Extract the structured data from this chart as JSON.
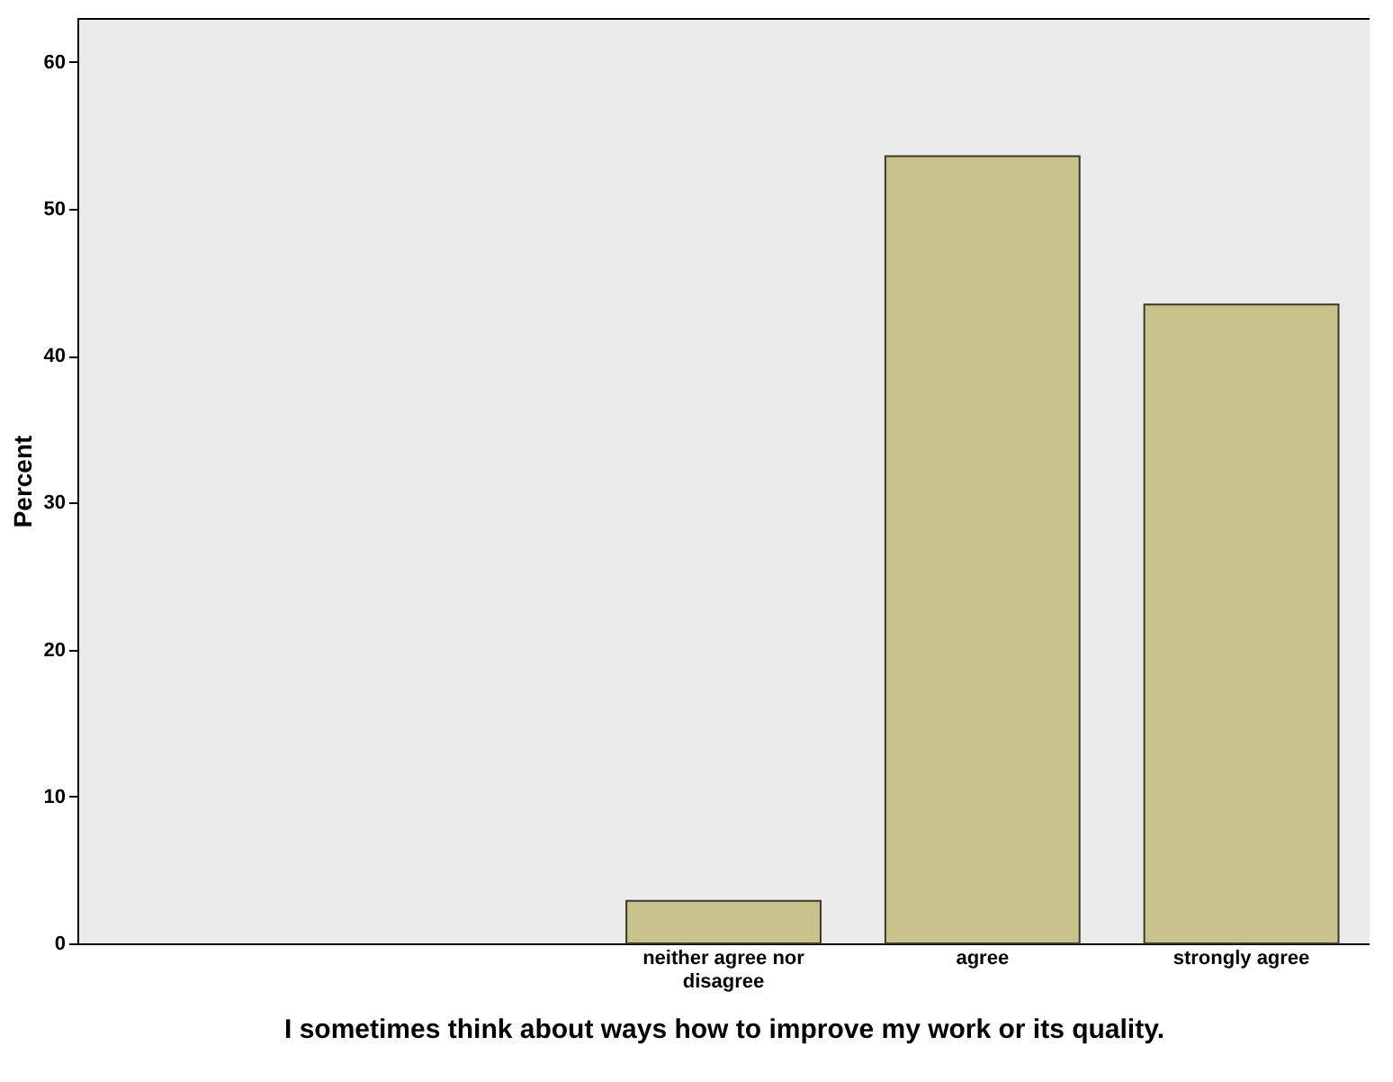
{
  "chart_data": {
    "type": "bar",
    "xlabel": "I sometimes think about ways how to improve my work or its quality.",
    "ylabel": "Percent",
    "categories": [
      null,
      null,
      "neither agree nor disagree",
      "agree",
      "strongly agree"
    ],
    "values": [
      null,
      null,
      2.9,
      53.6,
      43.5
    ],
    "color": "#c8c38a",
    "ylim": [
      0,
      63
    ],
    "yticks": [
      0,
      10,
      20,
      30,
      40,
      50,
      60
    ],
    "grid": false
  }
}
